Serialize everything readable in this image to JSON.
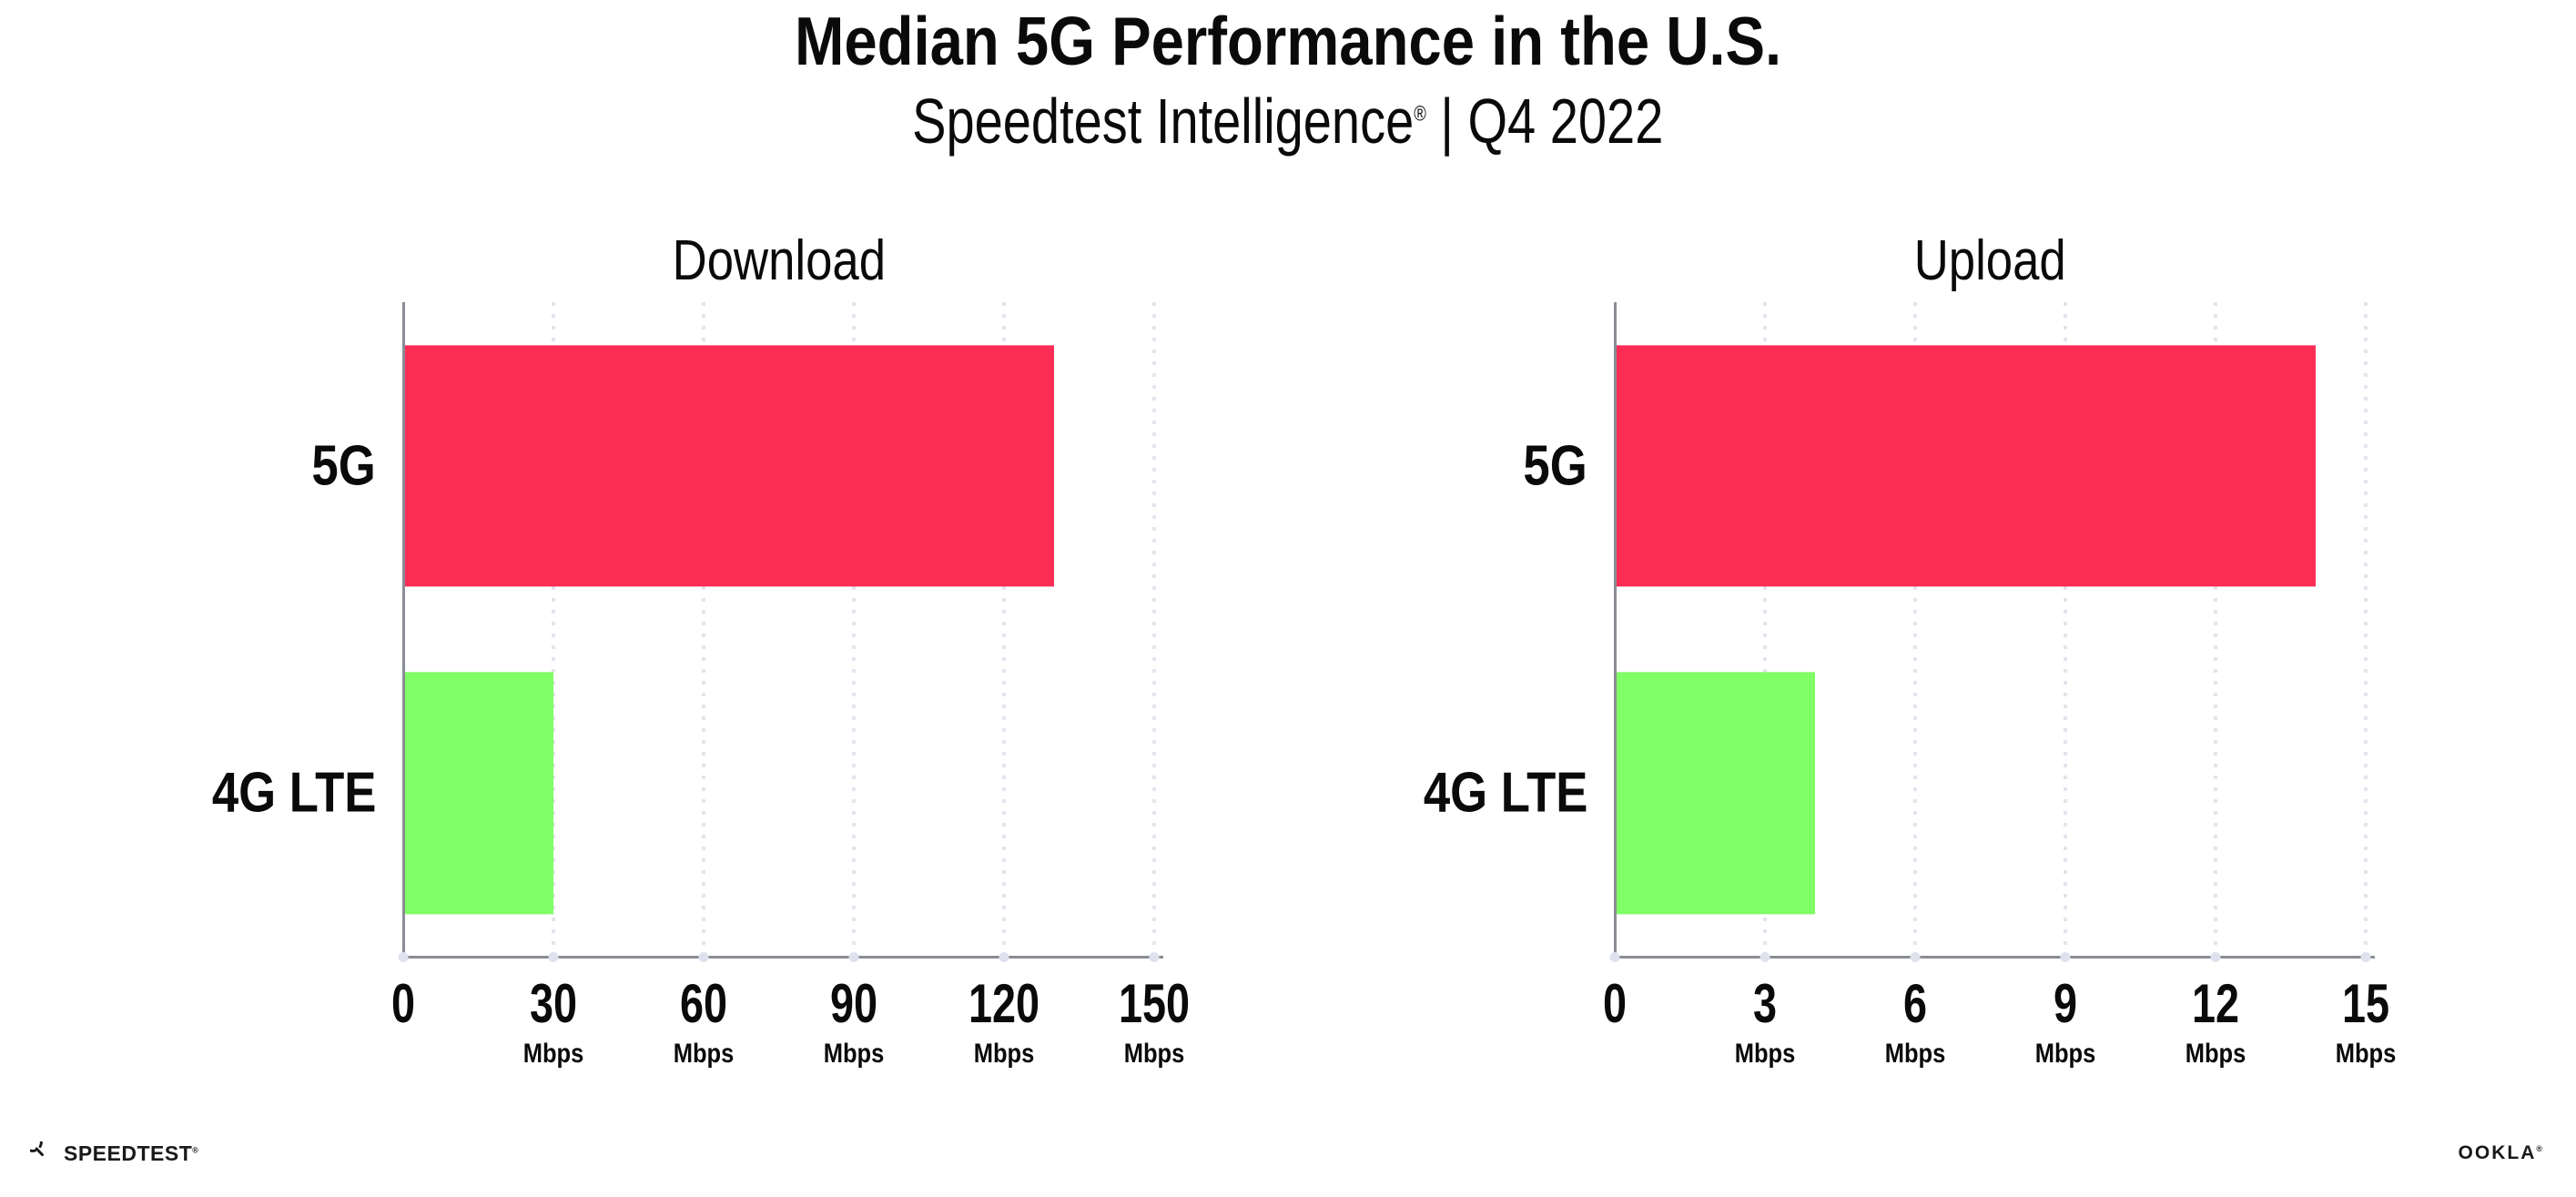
{
  "header": {
    "title": "Median 5G Performance in the U.S.",
    "subtitle_brand": "Speedtest Intelligence",
    "subtitle_reg": "®",
    "subtitle_rest": " | Q4 2022"
  },
  "footer": {
    "speedtest_label": "SPEEDTEST",
    "speedtest_reg": "®",
    "ookla_label": "OOKLA",
    "ookla_reg": "®"
  },
  "colors": {
    "bar_5g": "#FC2D55",
    "bar_4g_lte": "#7FFE66",
    "axis_line": "#8A8D94",
    "gridline": "#E4E4EE",
    "tick_dot": "#DFE2EE",
    "text": "#0A0A0A"
  },
  "chart_data": [
    {
      "type": "bar",
      "orientation": "horizontal",
      "title": "Download",
      "categories": [
        "5G",
        "4G LTE"
      ],
      "values": [
        130,
        30
      ],
      "unit": "Mbps",
      "xlim": [
        0,
        150
      ],
      "xticks": [
        0,
        30,
        60,
        90,
        120,
        150
      ],
      "tick_unit": "Mbps",
      "bar_colors": [
        "#FC2D55",
        "#7FFE66"
      ],
      "grid": "vertical-dotted",
      "legend": "none"
    },
    {
      "type": "bar",
      "orientation": "horizontal",
      "title": "Upload",
      "categories": [
        "5G",
        "4G LTE"
      ],
      "values": [
        14,
        4
      ],
      "unit": "Mbps",
      "xlim": [
        0,
        15
      ],
      "xticks": [
        0,
        3,
        6,
        9,
        12,
        15
      ],
      "tick_unit": "Mbps",
      "bar_colors": [
        "#FC2D55",
        "#7FFE66"
      ],
      "grid": "vertical-dotted",
      "legend": "none"
    }
  ]
}
